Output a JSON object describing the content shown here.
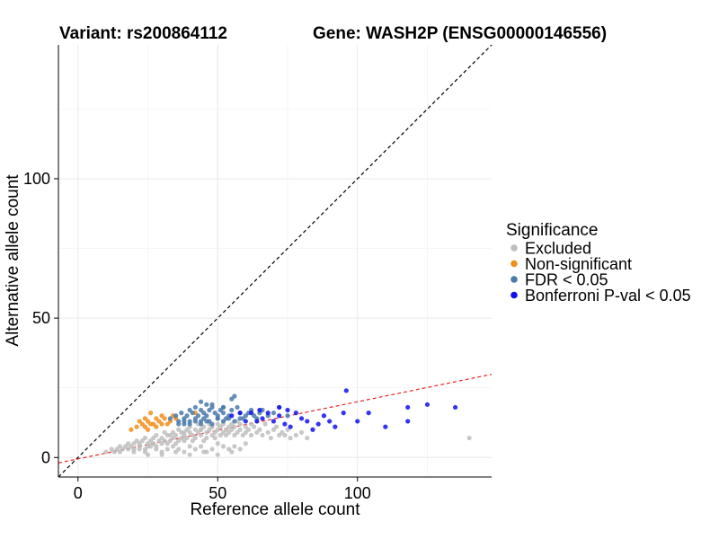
{
  "chart_data": {
    "type": "scatter",
    "title_left": "Variant: rs200864112",
    "title_right": "Gene: WASH2P (ENSG00000146556)",
    "xlabel": "Reference allele count",
    "ylabel": "Alternative allele count",
    "xlim": [
      -7,
      148
    ],
    "ylim": [
      -7,
      148
    ],
    "xticks": [
      0,
      50,
      100
    ],
    "yticks": [
      0,
      50,
      100
    ],
    "grid": true,
    "legend": {
      "title": "Significance",
      "placement": "right",
      "items": [
        {
          "label": "Excluded",
          "color": "#bebebe"
        },
        {
          "label": "Non-significant",
          "color": "#f28e1c"
        },
        {
          "label": "FDR < 0.05",
          "color": "#4a7aad"
        },
        {
          "label": "Bonferroni P-val < 0.05",
          "color": "#1010ee"
        }
      ]
    },
    "reference_lines": [
      {
        "name": "identity-line",
        "slope": 1,
        "intercept": 0,
        "color": "#000000",
        "dash": true
      },
      {
        "name": "fit-line",
        "slope": 0.205,
        "intercept": -0.5,
        "color": "#ee2222",
        "dash": true
      }
    ],
    "series": [
      {
        "name": "Excluded",
        "color": "#bebebe",
        "x": [
          10,
          12,
          13,
          14,
          15,
          15,
          16,
          17,
          18,
          18,
          19,
          20,
          20,
          21,
          22,
          22,
          23,
          24,
          24,
          25,
          25,
          26,
          27,
          27,
          28,
          28,
          29,
          30,
          30,
          31,
          31,
          32,
          33,
          33,
          34,
          34,
          35,
          35,
          36,
          36,
          37,
          37,
          38,
          38,
          39,
          39,
          40,
          40,
          41,
          41,
          42,
          42,
          43,
          43,
          44,
          44,
          45,
          45,
          46,
          46,
          47,
          47,
          48,
          48,
          49,
          49,
          50,
          50,
          51,
          51,
          52,
          52,
          53,
          53,
          54,
          54,
          55,
          55,
          56,
          56,
          57,
          57,
          58,
          58,
          59,
          60,
          60,
          61,
          62,
          62,
          63,
          64,
          65,
          66,
          67,
          68,
          69,
          70,
          71,
          72,
          73,
          74,
          75,
          76,
          78,
          80,
          82,
          20,
          22,
          24,
          26,
          28,
          30,
          32,
          34,
          36,
          38,
          40,
          42,
          44,
          46,
          48,
          50,
          52,
          54,
          56,
          58,
          60,
          25,
          30,
          35,
          40,
          45,
          50,
          55,
          32,
          38,
          44,
          48,
          52,
          140
        ],
        "y": [
          2,
          3,
          2,
          3,
          4,
          2,
          3,
          4,
          5,
          3,
          4,
          5,
          3,
          6,
          4,
          5,
          6,
          3,
          7,
          5,
          4,
          6,
          7,
          5,
          4,
          8,
          6,
          5,
          7,
          9,
          6,
          5,
          8,
          6,
          7,
          9,
          5,
          8,
          6,
          10,
          7,
          9,
          8,
          6,
          10,
          7,
          9,
          11,
          8,
          6,
          10,
          7,
          9,
          12,
          8,
          10,
          6,
          11,
          9,
          7,
          10,
          12,
          8,
          11,
          9,
          7,
          10,
          12,
          8,
          11,
          9,
          13,
          10,
          8,
          11,
          9,
          12,
          10,
          8,
          11,
          9,
          13,
          10,
          12,
          8,
          11,
          9,
          10,
          12,
          8,
          11,
          9,
          10,
          8,
          12,
          9,
          7,
          10,
          11,
          8,
          9,
          8,
          10,
          7,
          8,
          9,
          7,
          2,
          3,
          2,
          4,
          3,
          2,
          3,
          4,
          3,
          2,
          4,
          3,
          4,
          2,
          3,
          5,
          4,
          3,
          4,
          3,
          5,
          1,
          1,
          2,
          1,
          2,
          1,
          2,
          8,
          9,
          10,
          11,
          12,
          7
        ]
      },
      {
        "name": "Non-significant",
        "color": "#f28e1c",
        "x": [
          19,
          21,
          22,
          23,
          24,
          25,
          26,
          27,
          28,
          29,
          30,
          31,
          32,
          33,
          34,
          35,
          24,
          25,
          26,
          28,
          30,
          42
        ],
        "y": [
          10,
          11,
          13,
          12,
          14,
          13,
          16,
          12,
          14,
          13,
          15,
          14,
          12,
          13,
          15,
          14,
          11,
          10,
          12,
          11,
          12,
          16
        ]
      },
      {
        "name": "FDR < 0.05",
        "color": "#4a7aad",
        "x": [
          33,
          35,
          36,
          37,
          38,
          38,
          39,
          40,
          40,
          41,
          42,
          42,
          43,
          44,
          44,
          45,
          45,
          46,
          46,
          47,
          47,
          48,
          49,
          50,
          50,
          51,
          52,
          52,
          53,
          54,
          55,
          56,
          57,
          58,
          59,
          60,
          61,
          62,
          63,
          64,
          65,
          66,
          68,
          70,
          72,
          75,
          36,
          38,
          40,
          42,
          44,
          46,
          48,
          50,
          52,
          54,
          56,
          58,
          44,
          48,
          52,
          55
        ],
        "y": [
          14,
          15,
          13,
          16,
          14,
          12,
          15,
          17,
          13,
          16,
          14,
          18,
          15,
          13,
          17,
          16,
          14,
          19,
          15,
          13,
          17,
          18,
          16,
          15,
          14,
          17,
          16,
          18,
          14,
          15,
          17,
          22,
          18,
          16,
          14,
          15,
          16,
          17,
          15,
          14,
          16,
          17,
          15,
          16,
          18,
          15,
          12,
          13,
          12,
          13,
          12,
          13,
          12,
          14,
          13,
          14,
          13,
          14,
          20,
          19,
          18,
          21
        ]
      },
      {
        "name": "Bonferroni P-val < 0.05",
        "color": "#1010ee",
        "x": [
          55,
          58,
          60,
          62,
          64,
          65,
          66,
          68,
          70,
          72,
          72,
          74,
          75,
          76,
          78,
          80,
          82,
          84,
          86,
          88,
          90,
          92,
          95,
          96,
          100,
          104,
          110,
          118,
          118,
          125,
          135
        ],
        "y": [
          15,
          16,
          13,
          16,
          13,
          17,
          14,
          16,
          13,
          15,
          18,
          12,
          17,
          11,
          16,
          14,
          13,
          10,
          12,
          15,
          13,
          11,
          16,
          24,
          13,
          16,
          11,
          13,
          18,
          19,
          18
        ]
      }
    ]
  }
}
